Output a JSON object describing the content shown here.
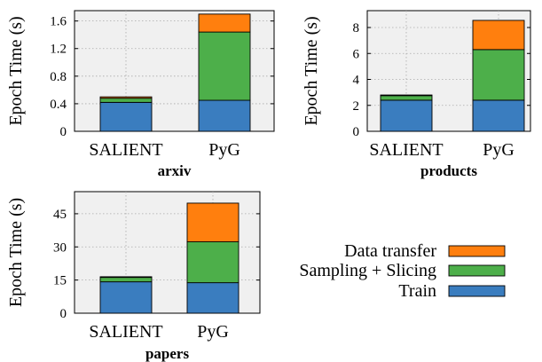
{
  "chart_data": [
    {
      "type": "bar",
      "stacked": true,
      "title": "arxiv",
      "ylabel": "Epoch Time (s)",
      "categories": [
        "SALIENT",
        "PyG"
      ],
      "ylim": [
        0,
        1.75
      ],
      "yticks": [
        0,
        0.4,
        0.8,
        1.2,
        1.6
      ],
      "ytick_labels": [
        "0",
        "0.4",
        "0.8",
        "1.2",
        "1.6"
      ],
      "grid": true,
      "series": [
        {
          "name": "Train",
          "values": [
            0.42,
            0.45
          ]
        },
        {
          "name": "Sampling + Slicing",
          "values": [
            0.06,
            0.99
          ]
        },
        {
          "name": "Data transfer",
          "values": [
            0.02,
            0.26
          ]
        }
      ]
    },
    {
      "type": "bar",
      "stacked": true,
      "title": "products",
      "ylabel": "Epoch Time (s)",
      "categories": [
        "SALIENT",
        "PyG"
      ],
      "ylim": [
        0,
        9.3
      ],
      "yticks": [
        0,
        2,
        4,
        6,
        8
      ],
      "ytick_labels": [
        "0",
        "2",
        "4",
        "6",
        "8"
      ],
      "grid": true,
      "series": [
        {
          "name": "Train",
          "values": [
            2.4,
            2.4
          ]
        },
        {
          "name": "Sampling + Slicing",
          "values": [
            0.35,
            3.9
          ]
        },
        {
          "name": "Data transfer",
          "values": [
            0.05,
            2.25
          ]
        }
      ]
    },
    {
      "type": "bar",
      "stacked": true,
      "title": "papers",
      "ylabel": "Epoch Time (s)",
      "categories": [
        "SALIENT",
        "PyG"
      ],
      "ylim": [
        0,
        55
      ],
      "yticks": [
        0,
        15,
        30,
        45
      ],
      "ytick_labels": [
        "0",
        "15",
        "30",
        "45"
      ],
      "grid": true,
      "series": [
        {
          "name": "Train",
          "values": [
            14.2,
            13.8
          ]
        },
        {
          "name": "Sampling + Slicing",
          "values": [
            2.0,
            18.5
          ]
        },
        {
          "name": "Data transfer",
          "values": [
            0.3,
            17.5
          ]
        }
      ]
    }
  ],
  "legend": {
    "placement": "right",
    "items": [
      {
        "label": "Data transfer",
        "color": "#ff7f0e"
      },
      {
        "label": "Sampling + Slicing",
        "color": "#4daf4a"
      },
      {
        "label": "Train",
        "color": "#3a7dbf"
      }
    ]
  },
  "colors": {
    "Train": "#3a7dbf",
    "Sampling + Slicing": "#4daf4a",
    "Data transfer": "#ff7f0e"
  }
}
